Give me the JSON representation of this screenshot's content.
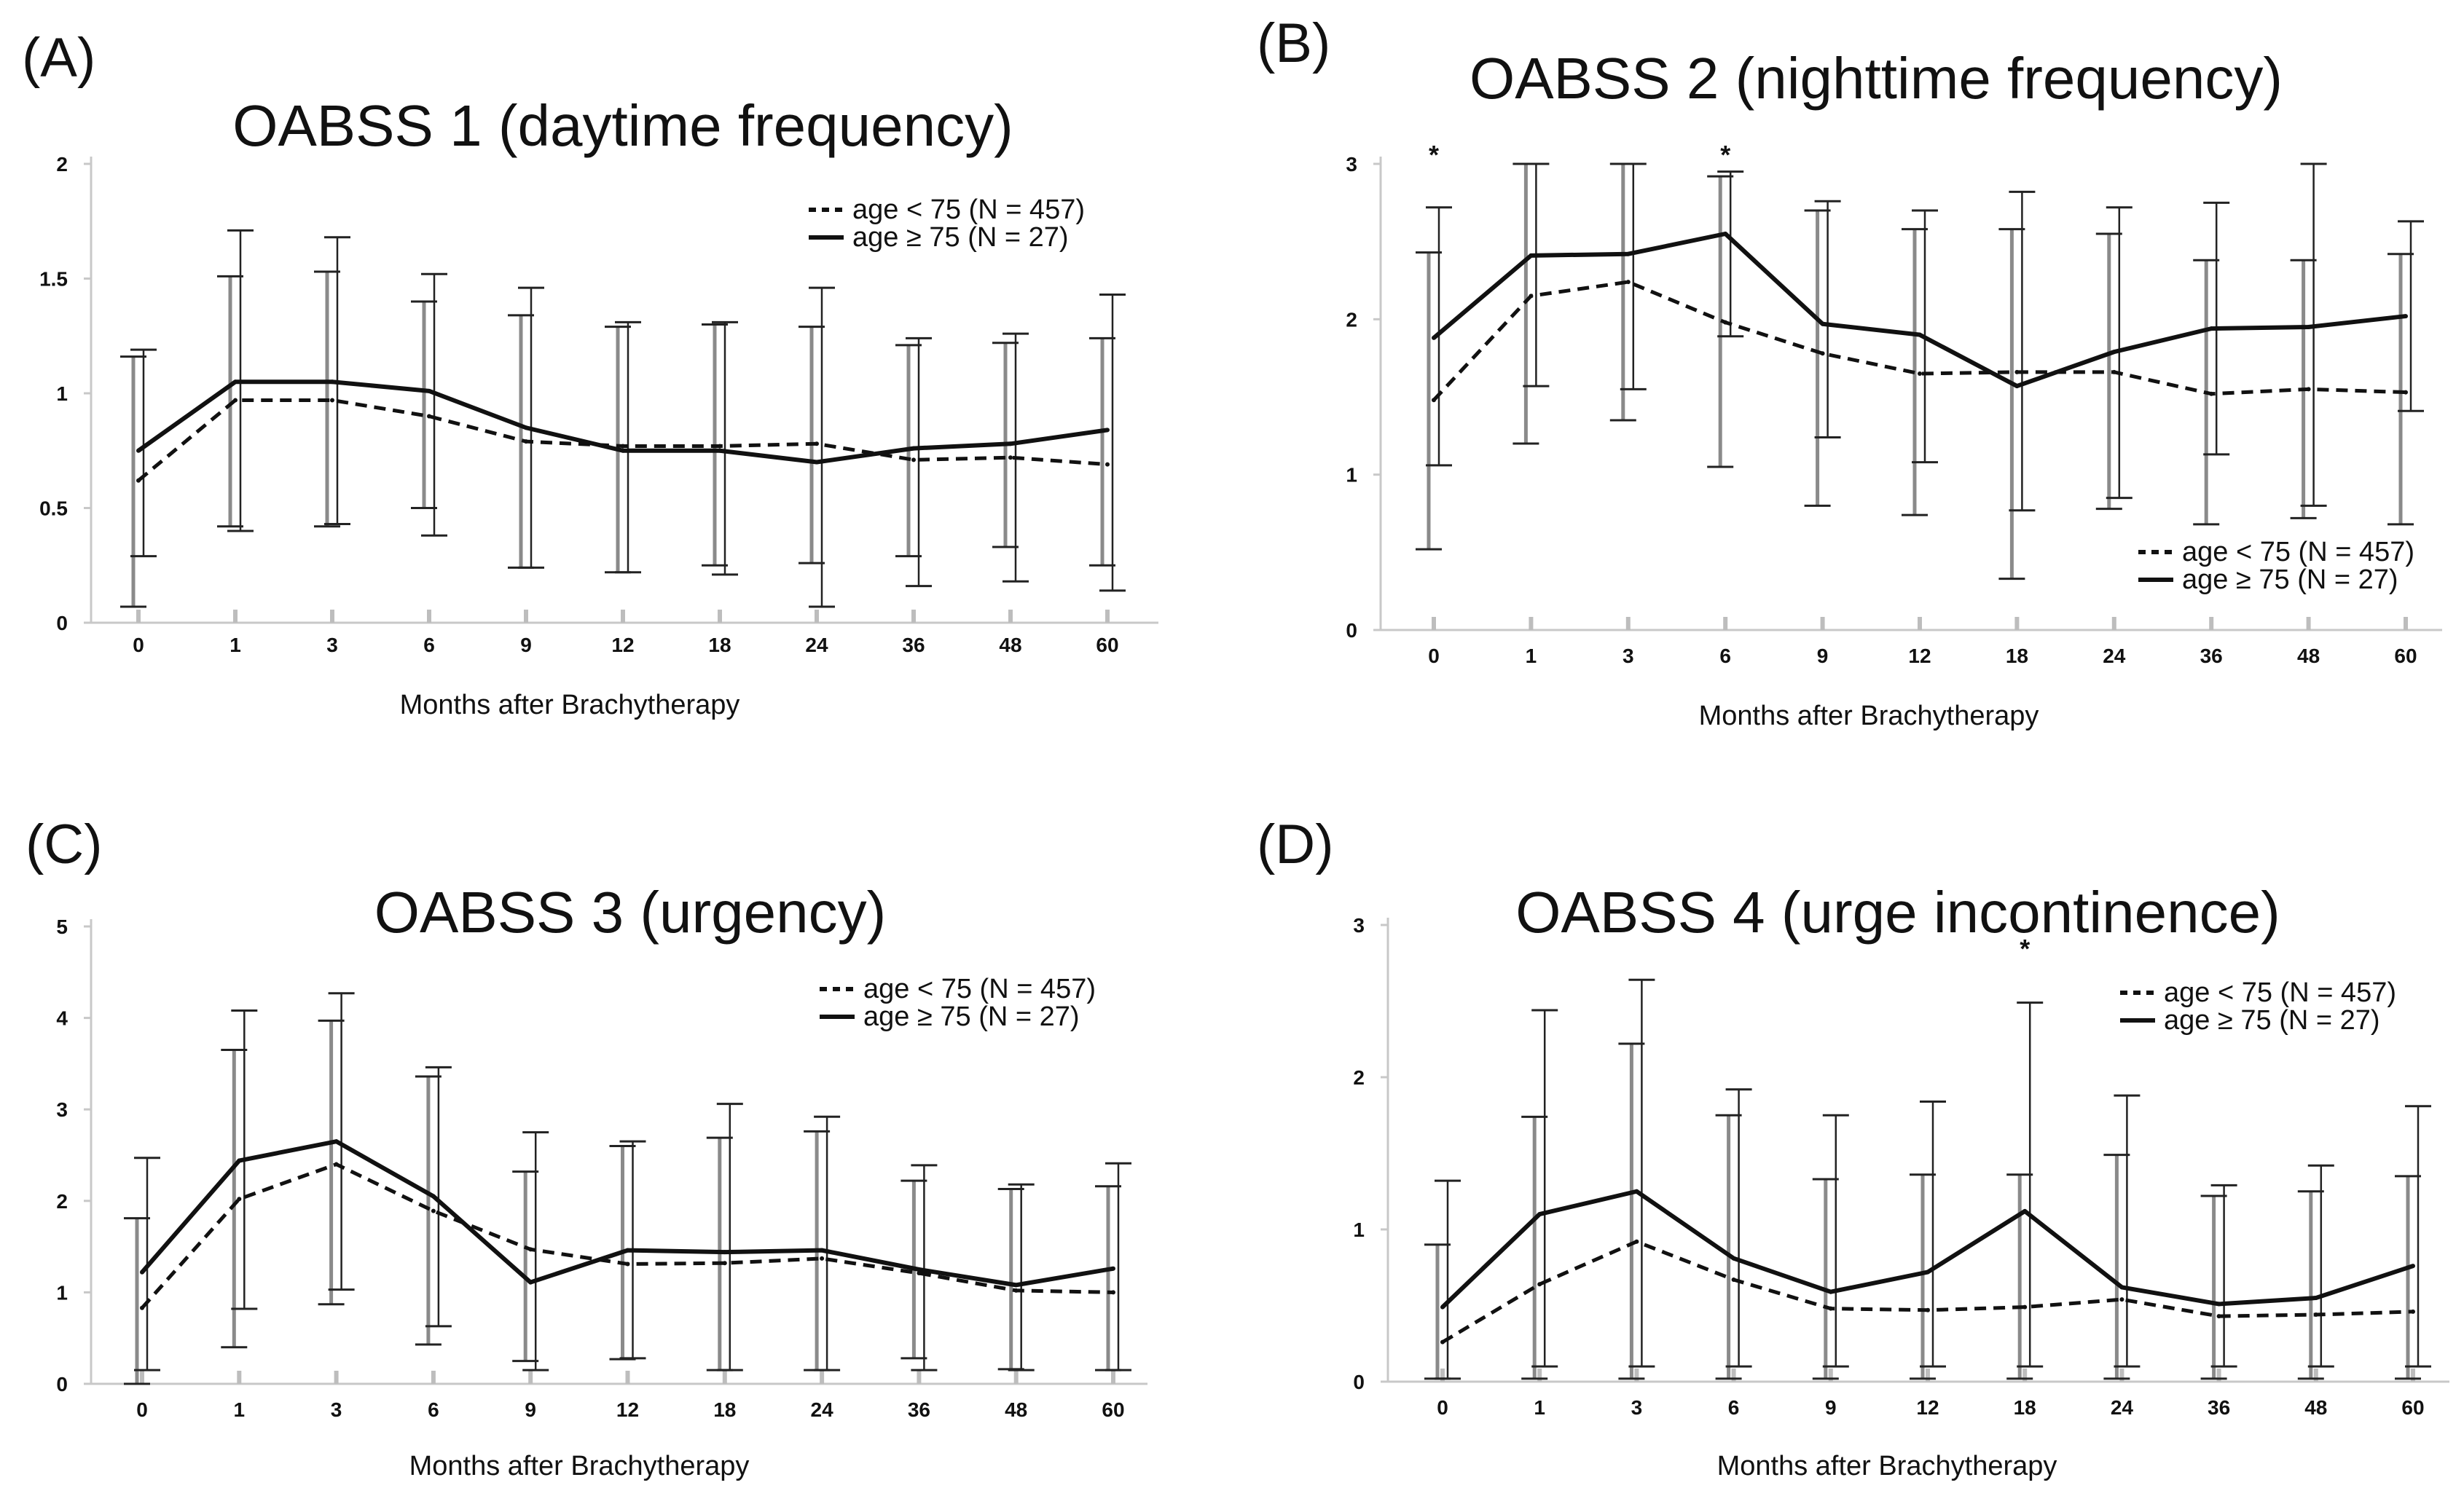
{
  "chart_data": [
    {
      "type": "line",
      "panel": "(A)",
      "title": "OABSS 1 (daytime frequency)",
      "xlabel": "Months after Brachytherapy",
      "ylabel": "",
      "categories": [
        "0",
        "1",
        "3",
        "6",
        "9",
        "12",
        "18",
        "24",
        "36",
        "48",
        "60"
      ],
      "yticks": [
        "0",
        "0.5",
        "1",
        "1.5",
        "2"
      ],
      "ylim": [
        0,
        2
      ],
      "legend_position": "top-right",
      "series": [
        {
          "name": "age < 75 (N = 457)",
          "style": "dashed",
          "values": [
            0.62,
            0.97,
            0.97,
            0.9,
            0.79,
            0.77,
            0.77,
            0.78,
            0.71,
            0.72,
            0.69
          ],
          "upper": [
            1.16,
            1.51,
            1.53,
            1.4,
            1.34,
            1.29,
            1.3,
            1.29,
            1.21,
            1.22,
            1.24
          ],
          "lower": [
            0.07,
            0.42,
            0.42,
            0.5,
            0.24,
            0.22,
            0.25,
            0.26,
            0.29,
            0.33,
            0.25
          ]
        },
        {
          "name": "age ≥ 75 (N = 27)",
          "style": "solid",
          "values": [
            0.75,
            1.05,
            1.05,
            1.01,
            0.85,
            0.75,
            0.75,
            0.7,
            0.76,
            0.78,
            0.84
          ],
          "upper": [
            1.19,
            1.71,
            1.68,
            1.52,
            1.46,
            1.31,
            1.31,
            1.46,
            1.24,
            1.26,
            1.43
          ],
          "lower": [
            0.29,
            0.4,
            0.43,
            0.38,
            0.24,
            0.22,
            0.21,
            0.07,
            0.16,
            0.18,
            0.14
          ]
        }
      ],
      "significance": []
    },
    {
      "type": "line",
      "panel": "(B)",
      "title": "OABSS 2 (nighttime frequency)",
      "xlabel": "Months after Brachytherapy",
      "ylabel": "",
      "categories": [
        "0",
        "1",
        "3",
        "6",
        "9",
        "12",
        "18",
        "24",
        "36",
        "48",
        "60"
      ],
      "yticks": [
        "0",
        "1",
        "2",
        "3"
      ],
      "ylim": [
        0,
        3
      ],
      "legend_position": "bottom-right",
      "series": [
        {
          "name": "age < 75 (N = 457)",
          "style": "dashed",
          "values": [
            1.48,
            2.15,
            2.24,
            1.98,
            1.78,
            1.65,
            1.66,
            1.66,
            1.52,
            1.55,
            1.53
          ],
          "upper": [
            2.43,
            3.0,
            3.0,
            2.92,
            2.7,
            2.58,
            2.58,
            2.55,
            2.38,
            2.38,
            2.42
          ],
          "lower": [
            0.52,
            1.2,
            1.35,
            1.05,
            0.8,
            0.74,
            0.33,
            0.78,
            0.68,
            0.72,
            0.68
          ]
        },
        {
          "name": "age ≥ 75 (N = 27)",
          "style": "solid",
          "values": [
            1.88,
            2.41,
            2.42,
            2.55,
            1.97,
            1.9,
            1.57,
            1.79,
            1.94,
            1.95,
            2.02
          ],
          "upper": [
            2.72,
            3.0,
            3.0,
            2.95,
            2.76,
            2.7,
            2.82,
            2.72,
            2.75,
            3.0,
            2.63
          ],
          "lower": [
            1.06,
            1.57,
            1.55,
            1.89,
            1.24,
            1.08,
            0.77,
            0.85,
            1.13,
            0.8,
            1.41
          ]
        }
      ],
      "significance": [
        {
          "category": "0",
          "label": "*"
        },
        {
          "category": "6",
          "label": "*"
        }
      ]
    },
    {
      "type": "line",
      "panel": "(C)",
      "title": "OABSS 3 (urgency)",
      "xlabel": "Months after Brachytherapy",
      "ylabel": "",
      "categories": [
        "0",
        "1",
        "3",
        "6",
        "9",
        "12",
        "18",
        "24",
        "36",
        "48",
        "60"
      ],
      "yticks": [
        "0",
        "1",
        "2",
        "3",
        "4",
        "5"
      ],
      "ylim": [
        0,
        5
      ],
      "legend_position": "top-right",
      "series": [
        {
          "name": "age < 75 (N = 457)",
          "style": "dashed",
          "values": [
            0.83,
            2.02,
            2.4,
            1.89,
            1.47,
            1.31,
            1.32,
            1.37,
            1.21,
            1.02,
            1.0
          ],
          "upper": [
            1.81,
            3.65,
            3.97,
            3.36,
            2.32,
            2.6,
            2.69,
            2.76,
            2.22,
            2.13,
            2.16
          ],
          "lower": [
            0.0,
            0.4,
            0.87,
            0.43,
            0.25,
            0.27,
            0.15,
            0.15,
            0.28,
            0.16,
            0.15
          ]
        },
        {
          "name": "age ≥ 75 (N = 27)",
          "style": "solid",
          "values": [
            1.22,
            2.44,
            2.65,
            2.05,
            1.11,
            1.46,
            1.44,
            1.46,
            1.25,
            1.08,
            1.26
          ],
          "upper": [
            2.47,
            4.08,
            4.27,
            3.46,
            2.75,
            2.65,
            3.06,
            2.92,
            2.39,
            2.18,
            2.41
          ],
          "lower": [
            0.15,
            0.82,
            1.03,
            0.63,
            0.15,
            0.28,
            0.15,
            0.15,
            0.15,
            0.15,
            0.15
          ]
        }
      ],
      "significance": []
    },
    {
      "type": "line",
      "panel": "(D)",
      "title": "OABSS 4 (urge incontinence)",
      "xlabel": "Months after Brachytherapy",
      "ylabel": "",
      "categories": [
        "0",
        "1",
        "3",
        "6",
        "9",
        "12",
        "18",
        "24",
        "36",
        "48",
        "60"
      ],
      "yticks": [
        "0",
        "1",
        "2",
        "3"
      ],
      "ylim": [
        0,
        3
      ],
      "legend_position": "top-right",
      "series": [
        {
          "name": "age < 75 (N = 457)",
          "style": "dashed",
          "values": [
            0.26,
            0.64,
            0.92,
            0.67,
            0.48,
            0.47,
            0.49,
            0.54,
            0.43,
            0.44,
            0.46
          ],
          "upper": [
            0.9,
            1.74,
            2.22,
            1.75,
            1.33,
            1.36,
            1.36,
            1.49,
            1.22,
            1.25,
            1.35
          ],
          "lower": [
            0.02,
            0.02,
            0.02,
            0.02,
            0.02,
            0.02,
            0.02,
            0.02,
            0.02,
            0.02,
            0.02
          ]
        },
        {
          "name": "age ≥ 75 (N = 27)",
          "style": "solid",
          "values": [
            0.49,
            1.1,
            1.25,
            0.81,
            0.59,
            0.72,
            1.12,
            0.62,
            0.51,
            0.55,
            0.76
          ],
          "upper": [
            1.32,
            2.44,
            2.64,
            1.92,
            1.75,
            1.84,
            2.49,
            1.88,
            1.29,
            1.42,
            1.81
          ],
          "lower": [
            0.02,
            0.1,
            0.1,
            0.1,
            0.1,
            0.1,
            0.1,
            0.1,
            0.1,
            0.1,
            0.1
          ]
        }
      ],
      "significance": [
        {
          "category": "18",
          "label": "*"
        }
      ]
    }
  ]
}
